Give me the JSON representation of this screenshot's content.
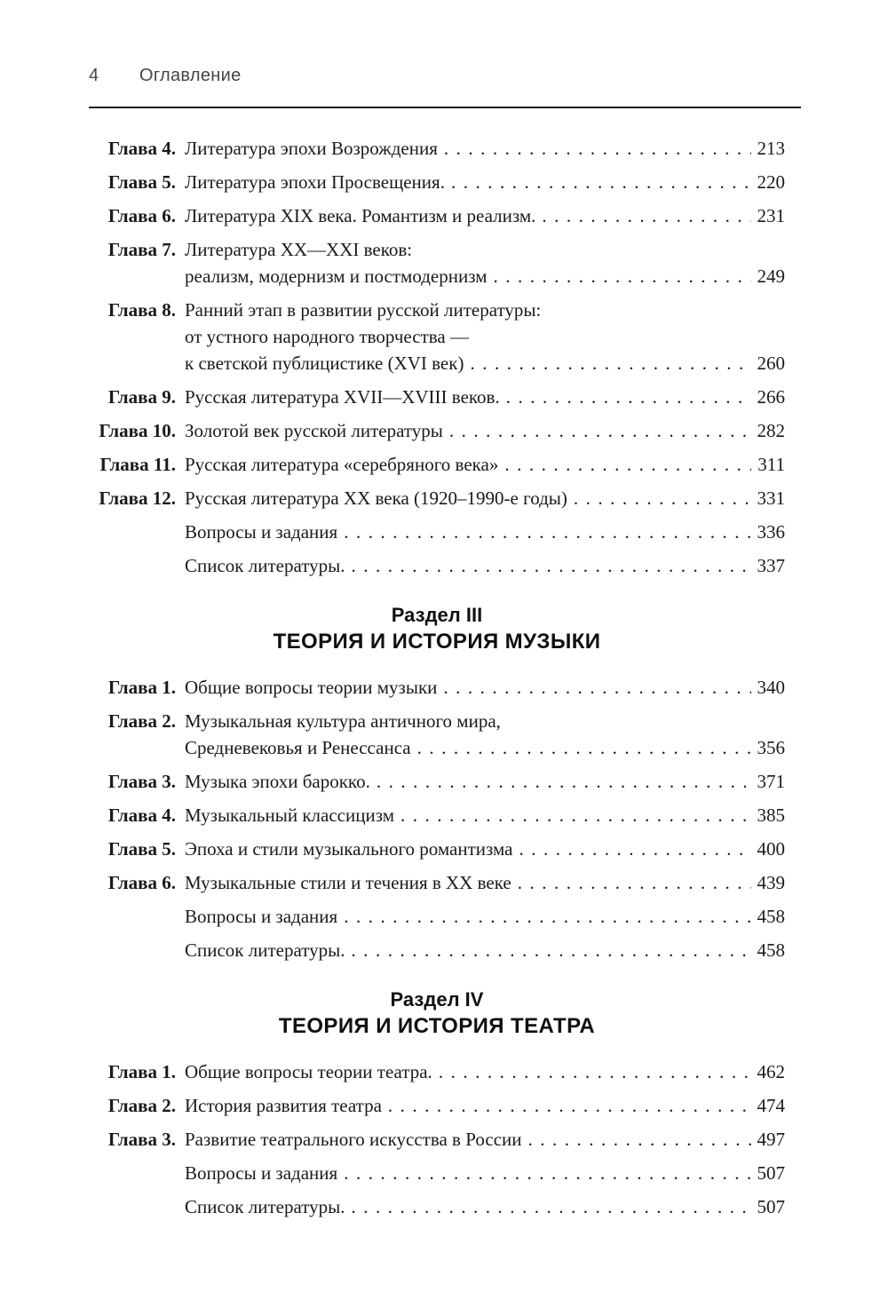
{
  "colors": {
    "ink": "#1a1a1a",
    "header_gray": "#454545",
    "rule": "#1c1c1c",
    "heading_ink": "#101010"
  },
  "header": {
    "page_number": "4",
    "title": "Оглавление"
  },
  "sections": [
    {
      "heading": null,
      "entries": [
        {
          "label": "Глава 4.",
          "lines": [
            "Литература эпохи Возрождения"
          ],
          "page": "213"
        },
        {
          "label": "Глава 5.",
          "lines": [
            "Литература эпохи Просвещения."
          ],
          "page": "220"
        },
        {
          "label": "Глава 6.",
          "lines": [
            "Литература XIX века. Романтизм и реализм."
          ],
          "page": "231"
        },
        {
          "label": "Глава 7.",
          "lines": [
            "Литература XX—XXI веков:",
            "реализм, модернизм и постмодернизм"
          ],
          "page": "249"
        },
        {
          "label": "Глава 8.",
          "lines": [
            "Ранний этап в развитии русской литературы:",
            "от устного народного творчества —",
            "к светской публицистике (XVI век)"
          ],
          "page": "260"
        },
        {
          "label": "Глава 9.",
          "lines": [
            "Русская литература XVII—XVIII веков."
          ],
          "page": "266"
        },
        {
          "label": "Глава 10.",
          "lines": [
            "Золотой век русской литературы"
          ],
          "page": "282"
        },
        {
          "label": "Глава 11.",
          "lines": [
            "Русская литература «серебряного века»"
          ],
          "page": "311"
        },
        {
          "label": "Глава 12.",
          "lines": [
            "Русская литература XX века (1920–1990-е годы)"
          ],
          "page": "331"
        },
        {
          "label": "",
          "lines": [
            "Вопросы и задания"
          ],
          "page": "336"
        },
        {
          "label": "",
          "lines": [
            "Список литературы."
          ],
          "page": "337"
        }
      ]
    },
    {
      "heading": {
        "line1": "Раздел III",
        "line2": "ТЕОРИЯ И ИСТОРИЯ МУЗЫКИ"
      },
      "entries": [
        {
          "label": "Глава 1.",
          "lines": [
            "Общие вопросы теории музыки"
          ],
          "page": "340"
        },
        {
          "label": "Глава 2.",
          "lines": [
            "Музыкальная культура античного мира,",
            "Средневековья и Ренессанса"
          ],
          "page": "356"
        },
        {
          "label": "Глава 3.",
          "lines": [
            "Музыка эпохи барокко."
          ],
          "page": "371"
        },
        {
          "label": "Глава 4.",
          "lines": [
            "Музыкальный классицизм"
          ],
          "page": "385"
        },
        {
          "label": "Глава 5.",
          "lines": [
            "Эпоха и стили музыкального романтизма"
          ],
          "page": "400"
        },
        {
          "label": "Глава 6.",
          "lines": [
            "Музыкальные стили и течения в XX веке"
          ],
          "page": "439"
        },
        {
          "label": "",
          "lines": [
            "Вопросы и задания"
          ],
          "page": "458"
        },
        {
          "label": "",
          "lines": [
            "Список литературы."
          ],
          "page": "458"
        }
      ]
    },
    {
      "heading": {
        "line1": "Раздел IV",
        "line2": "ТЕОРИЯ И ИСТОРИЯ ТЕАТРА"
      },
      "entries": [
        {
          "label": "Глава 1.",
          "lines": [
            "Общие вопросы теории театра."
          ],
          "page": "462"
        },
        {
          "label": "Глава 2.",
          "lines": [
            "История развития театра"
          ],
          "page": "474"
        },
        {
          "label": "Глава 3.",
          "lines": [
            "Развитие театрального искусства в России"
          ],
          "page": "497"
        },
        {
          "label": "",
          "lines": [
            "Вопросы и задания"
          ],
          "page": "507"
        },
        {
          "label": "",
          "lines": [
            "Список литературы."
          ],
          "page": "507"
        }
      ]
    }
  ]
}
